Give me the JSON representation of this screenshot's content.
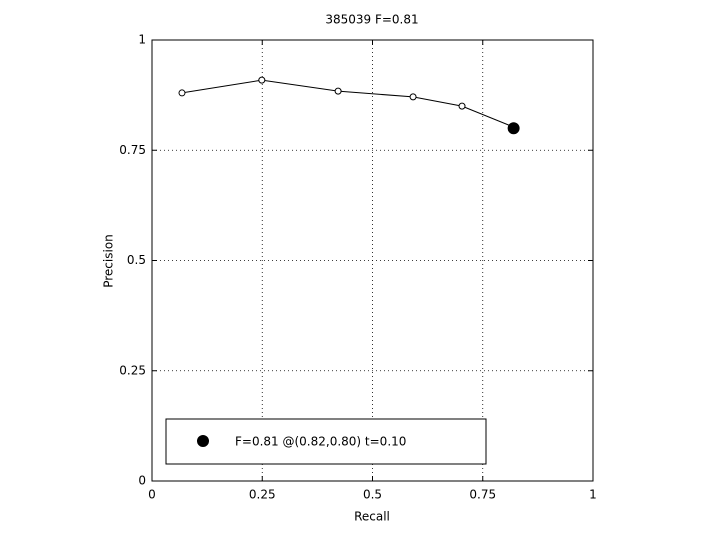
{
  "chart_data": {
    "type": "line",
    "title": "385039 F=0.81",
    "x_label": "Recall",
    "y_label": "Precision",
    "xlim": [
      0,
      1
    ],
    "ylim": [
      0,
      1
    ],
    "xticks": [
      0,
      0.25,
      0.5,
      0.75,
      1
    ],
    "yticks": [
      0,
      0.25,
      0.5,
      0.75,
      1
    ],
    "grid": true,
    "legend_position": "lower left",
    "series": [
      {
        "color": "#000000",
        "marker": "open-circle",
        "line": true,
        "x": [
          0.068,
          0.249,
          0.422,
          0.592,
          0.703,
          0.819
        ],
        "values": [
          0.88,
          0.909,
          0.884,
          0.871,
          0.85,
          0.803
        ]
      },
      {
        "name": "F=0.81 @(0.82,0.80) t=0.10",
        "color": "#000000",
        "marker": "filled-circle",
        "line": false,
        "x": [
          0.82
        ],
        "values": [
          0.8
        ]
      }
    ]
  }
}
